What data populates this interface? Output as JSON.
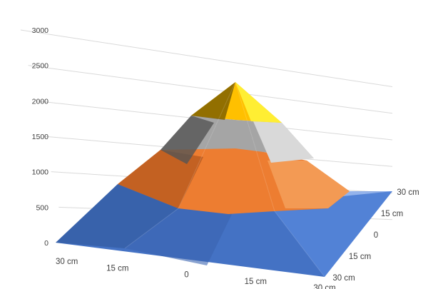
{
  "chart_data": {
    "type": "surface",
    "title": "",
    "zlabel": "",
    "z_ticks": [
      "0",
      "500",
      "1000",
      "1500",
      "2000",
      "2500",
      "3000"
    ],
    "zlim": [
      0,
      3000
    ],
    "x_ticks": [
      "30 cm",
      "15 cm",
      "0",
      "15 cm",
      "30 cm"
    ],
    "y_ticks": [
      "30 cm",
      "15 cm",
      "0",
      "15 cm",
      "30 cm"
    ],
    "bands": [
      {
        "range": [
          0,
          500
        ],
        "color": "#4472c4"
      },
      {
        "range": [
          500,
          1000
        ],
        "color": "#ed7d31"
      },
      {
        "range": [
          1000,
          1500
        ],
        "color": "#ed7d31"
      },
      {
        "range": [
          1500,
          2000
        ],
        "color": "#a5a5a5"
      },
      {
        "range": [
          2000,
          2500
        ],
        "color": "#ffc000"
      },
      {
        "range": [
          2500,
          3000
        ],
        "color": "#ffc000"
      }
    ],
    "z_grid": [
      [
        0,
        0,
        0,
        0,
        0
      ],
      [
        0,
        500,
        600,
        500,
        0
      ],
      [
        0,
        600,
        2250,
        600,
        0
      ],
      [
        0,
        500,
        600,
        500,
        0
      ],
      [
        0,
        0,
        0,
        0,
        0
      ]
    ],
    "grid": true,
    "legend": "none"
  }
}
